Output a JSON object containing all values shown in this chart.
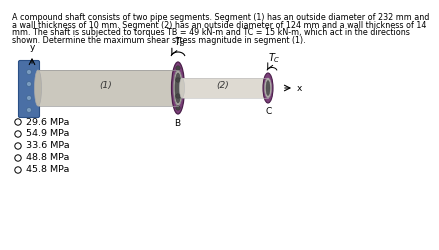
{
  "title_lines": [
    "A compound shaft consists of two pipe segments. Segment (1) has an outside diameter of 232 mm and",
    "a wall thickness of 10 mm. Segment (2) has an outside diameter of 124 mm and a wall thickness of 14",
    "mm. The shaft is subjected to torques TB = 49 kN-m and TC = 15 kN-m, which act in the directions",
    "shown. Determine the maximum shear stress magnitude in segment (1)."
  ],
  "choices": [
    "29.6 MPa",
    "54.9 MPa",
    "33.6 MPa",
    "48.8 MPa",
    "45.8 MPa"
  ],
  "bg_color": "#ffffff",
  "text_color": "#000000",
  "title_fontsize": 5.8,
  "choice_fontsize": 6.8,
  "wall_color": "#4a6fa5",
  "wall_edge": "#2a4f85",
  "pipe1_color": "#cbc8be",
  "pipe1_shade": "#b8b5aa",
  "pipe2_color": "#dedad2",
  "pipe2_shade": "#ccc9c0",
  "ring_color": "#7a3f78",
  "ring_edge": "#4a1f4a",
  "ring_inner": "#9a7a98",
  "hole_color": "#888880",
  "axis_color": "#000000"
}
